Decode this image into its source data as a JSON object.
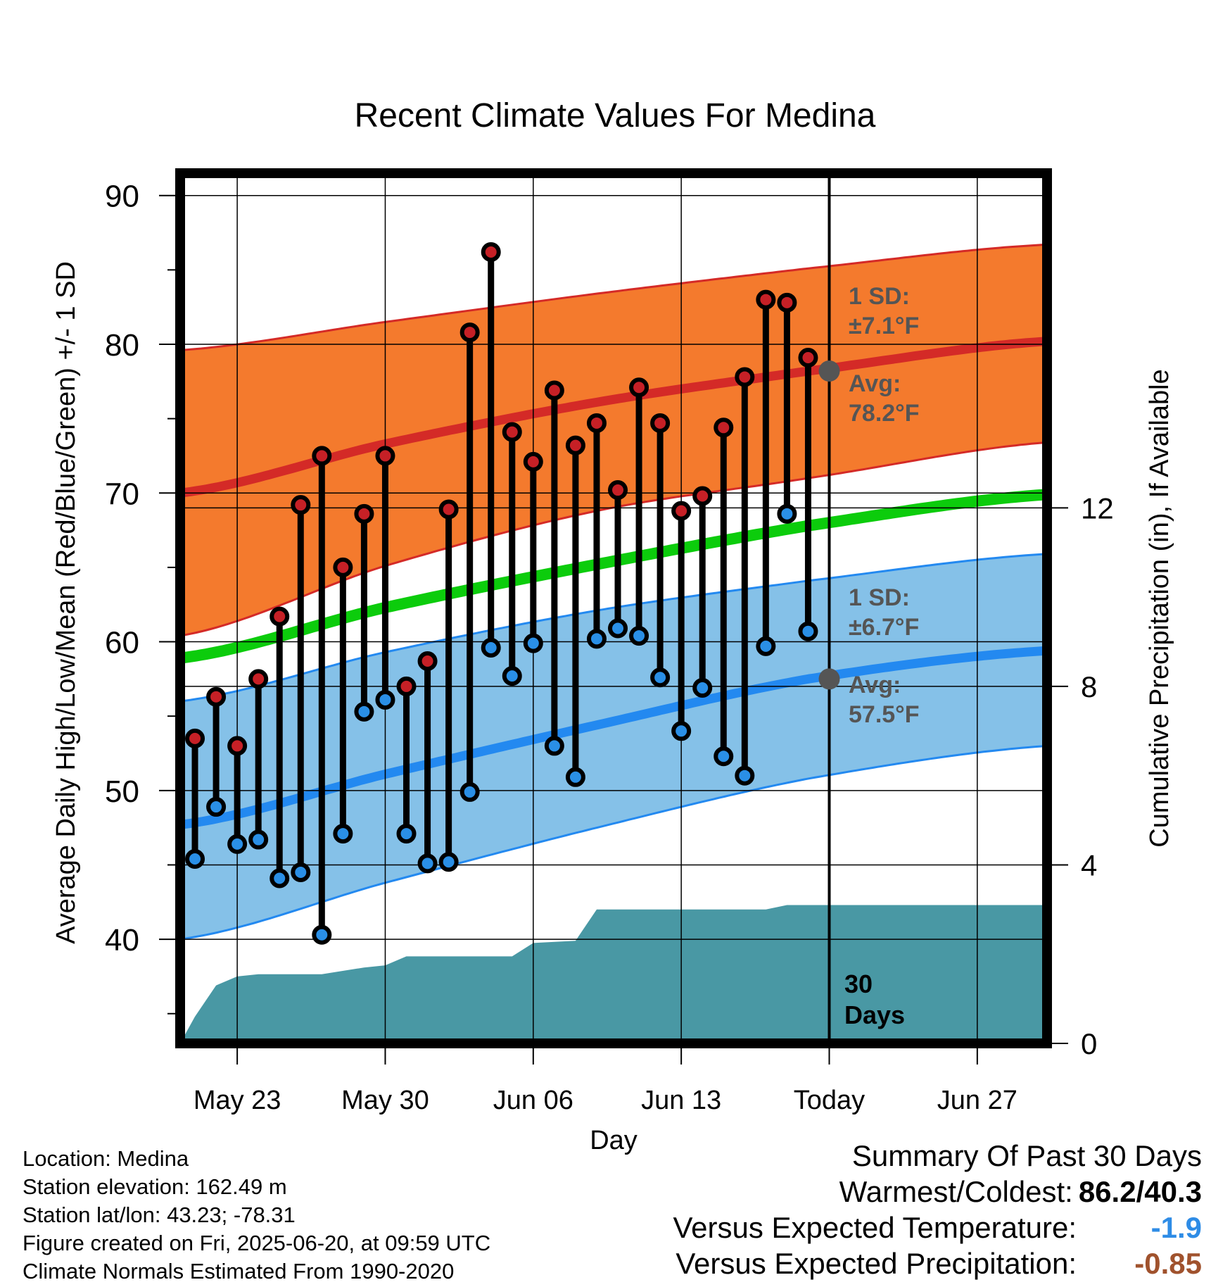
{
  "title": "Recent Climate Values For Medina",
  "chart_data": {
    "type": "line",
    "title": "Recent Climate Values For Medina",
    "xlabel": "Day",
    "ylabel": "Average Daily High/Low/Mean (Red/Blue/Green) +/- 1 SD",
    "y2label": "Cumulative Precipitation (in), If Available",
    "ylim": [
      33,
      91.5
    ],
    "y2lim": [
      0,
      19.5
    ],
    "y_ticks": [
      "90",
      "80",
      "70",
      "60",
      "50",
      "40"
    ],
    "y2_ticks": [
      "12",
      "8",
      "4",
      "0"
    ],
    "x_tick_labels": [
      "May 23",
      "May 30",
      "Jun 06",
      "Jun 13",
      "Today",
      "Jun 27"
    ],
    "x_tick_days": [
      3,
      10,
      17,
      24,
      31,
      38
    ],
    "xlim": [
      0.3,
      41.3
    ],
    "grid": true,
    "today_day": 31,
    "daily": [
      {
        "day": 1,
        "high": 53.5,
        "low": 45.4
      },
      {
        "day": 2,
        "high": 56.3,
        "low": 48.9
      },
      {
        "day": 3,
        "high": 53.0,
        "low": 46.4
      },
      {
        "day": 4,
        "high": 57.5,
        "low": 46.7
      },
      {
        "day": 5,
        "high": 61.7,
        "low": 44.1
      },
      {
        "day": 6,
        "high": 69.2,
        "low": 44.5
      },
      {
        "day": 7,
        "high": 72.5,
        "low": 40.3
      },
      {
        "day": 8,
        "high": 65.0,
        "low": 47.1
      },
      {
        "day": 9,
        "high": 68.6,
        "low": 55.3
      },
      {
        "day": 10,
        "high": 72.5,
        "low": 56.1
      },
      {
        "day": 11,
        "high": 57.0,
        "low": 47.1
      },
      {
        "day": 12,
        "high": 58.7,
        "low": 45.1
      },
      {
        "day": 13,
        "high": 68.9,
        "low": 45.2
      },
      {
        "day": 14,
        "high": 80.8,
        "low": 49.9
      },
      {
        "day": 15,
        "high": 86.2,
        "low": 59.6
      },
      {
        "day": 16,
        "high": 74.1,
        "low": 57.7
      },
      {
        "day": 17,
        "high": 72.1,
        "low": 59.9
      },
      {
        "day": 18,
        "high": 76.9,
        "low": 53.0
      },
      {
        "day": 19,
        "high": 73.2,
        "low": 50.9
      },
      {
        "day": 20,
        "high": 74.7,
        "low": 60.2
      },
      {
        "day": 21,
        "high": 70.2,
        "low": 60.9
      },
      {
        "day": 22,
        "high": 77.1,
        "low": 60.4
      },
      {
        "day": 23,
        "high": 74.7,
        "low": 57.6
      },
      {
        "day": 24,
        "high": 68.8,
        "low": 54.0
      },
      {
        "day": 25,
        "high": 69.8,
        "low": 56.9
      },
      {
        "day": 26,
        "high": 74.4,
        "low": 52.3
      },
      {
        "day": 27,
        "high": 77.8,
        "low": 51.0
      },
      {
        "day": 28,
        "high": 83.0,
        "low": 59.7
      },
      {
        "day": 29,
        "high": 82.8,
        "low": 68.6
      },
      {
        "day": 30,
        "high": 79.1,
        "low": 60.7
      }
    ],
    "normals": {
      "days": [
        0.3,
        10,
        20,
        30,
        41.3
      ],
      "avg_high": [
        70.0,
        73.3,
        76.1,
        78.2,
        80.2
      ],
      "high_sd_upper": [
        79.6,
        81.5,
        83.4,
        85.1,
        86.7
      ],
      "high_sd_lower": [
        60.4,
        65.1,
        68.8,
        71.0,
        73.4
      ],
      "avg_mean": [
        58.9,
        62.3,
        65.2,
        67.8,
        69.9
      ],
      "avg_low": [
        47.7,
        51.1,
        54.4,
        57.5,
        59.4
      ],
      "low_sd_upper": [
        56.0,
        59.3,
        62.1,
        64.1,
        65.9
      ],
      "low_sd_lower": [
        40.0,
        43.8,
        47.5,
        50.8,
        53.0
      ]
    },
    "precip": {
      "days": [
        0.3,
        1,
        2,
        3,
        4,
        7,
        9,
        10,
        11,
        16,
        17,
        19,
        20,
        28,
        29,
        41.3
      ],
      "cumulative": [
        0,
        0.6,
        1.3,
        1.5,
        1.55,
        1.55,
        1.7,
        1.75,
        1.95,
        1.95,
        2.25,
        2.3,
        3.0,
        3.0,
        3.1,
        3.1
      ]
    },
    "annotations": {
      "high_sd": "1 SD:",
      "high_sd_value": "±7.1°F",
      "high_avg": "Avg:",
      "high_avg_value": "78.2°F",
      "low_sd": "1 SD:",
      "low_sd_value": "±6.7°F",
      "low_avg": "Avg:",
      "low_avg_value": "57.5°F",
      "period_num": "30",
      "period_unit": "Days"
    },
    "colors": {
      "high_band": "#f47a2d",
      "high_avg": "#d42a27",
      "mean": "#0ccc0c",
      "low_band": "#85c1e8",
      "low_avg": "#2389f0",
      "precip": "#4998a4",
      "high_dot": "#c62026",
      "low_dot": "#2a8fe6",
      "annotation": "#555555"
    }
  },
  "footer": {
    "location": "Location: Medina",
    "elevation": "Station elevation: 162.49 m",
    "latlon": "Station lat/lon: 43.23; -78.31",
    "created": "Figure created on Fri, 2025-06-20, at 09:59 UTC",
    "normals": "Climate Normals Estimated From 1990-2020"
  },
  "summary": {
    "heading": "Summary Of Past 30 Days",
    "warm_cold_label": "Warmest/Coldest:",
    "warm_cold_value": "86.2/40.3",
    "temp_label": "Versus Expected Temperature:",
    "temp_value": "-1.9",
    "temp_color": "#2e8ce6",
    "precip_label": "Versus Expected Precipitation:",
    "precip_value": "-0.85",
    "precip_color": "#a0522d"
  }
}
